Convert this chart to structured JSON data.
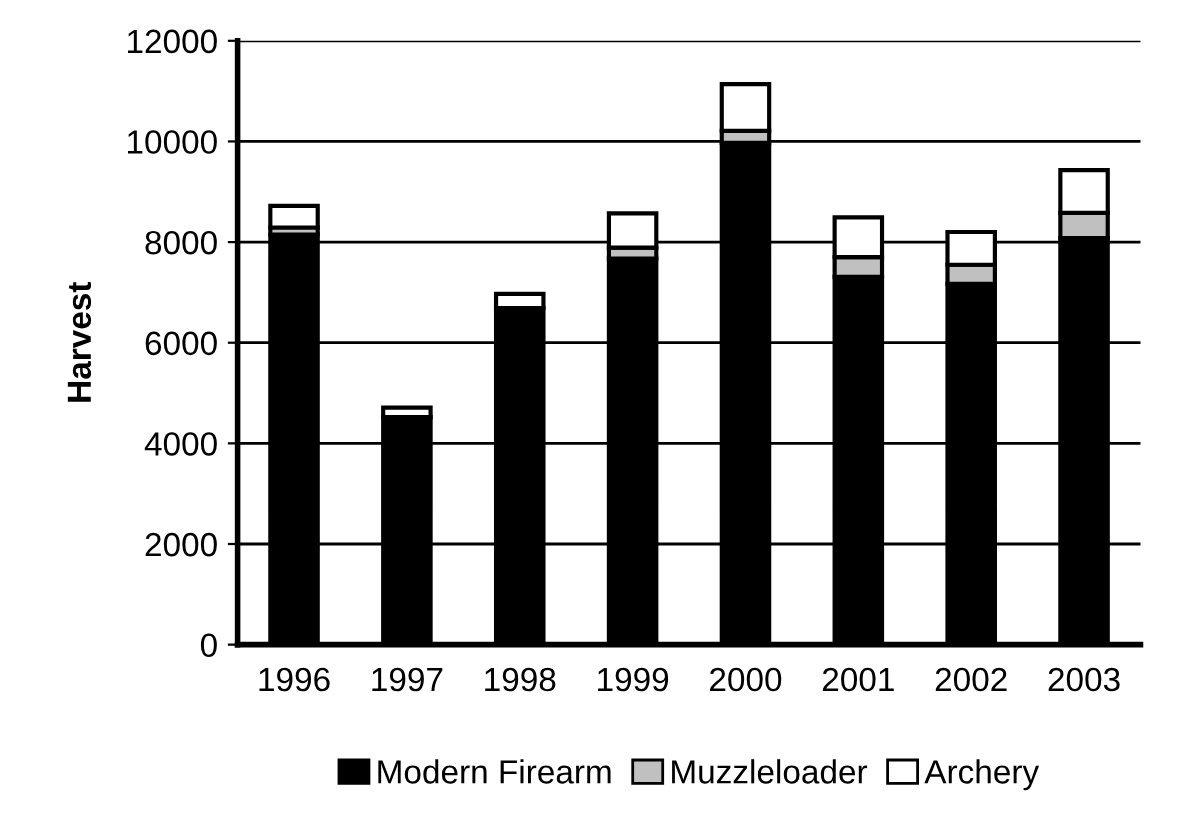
{
  "chart_data": {
    "type": "bar",
    "stacked": true,
    "ylabel": "Harvest",
    "categories": [
      "1996",
      "1997",
      "1998",
      "1999",
      "2000",
      "2001",
      "2002",
      "2003"
    ],
    "series": [
      {
        "name": "Modern Firearm",
        "color": "#000000",
        "values": [
          8150,
          4520,
          6690,
          7670,
          9970,
          7310,
          7170,
          8080
        ]
      },
      {
        "name": "Muzzleloader",
        "color": "#c0c0c0",
        "values": [
          140,
          null,
          null,
          220,
          240,
          390,
          380,
          500
        ]
      },
      {
        "name": "Archery",
        "color": "#ffffff",
        "values": [
          430,
          190,
          280,
          680,
          930,
          790,
          650,
          850
        ]
      }
    ],
    "ylim": [
      0,
      12000
    ],
    "yticks": [
      0,
      2000,
      4000,
      6000,
      8000,
      10000,
      12000
    ],
    "grid": "y",
    "legend": "bottom"
  }
}
